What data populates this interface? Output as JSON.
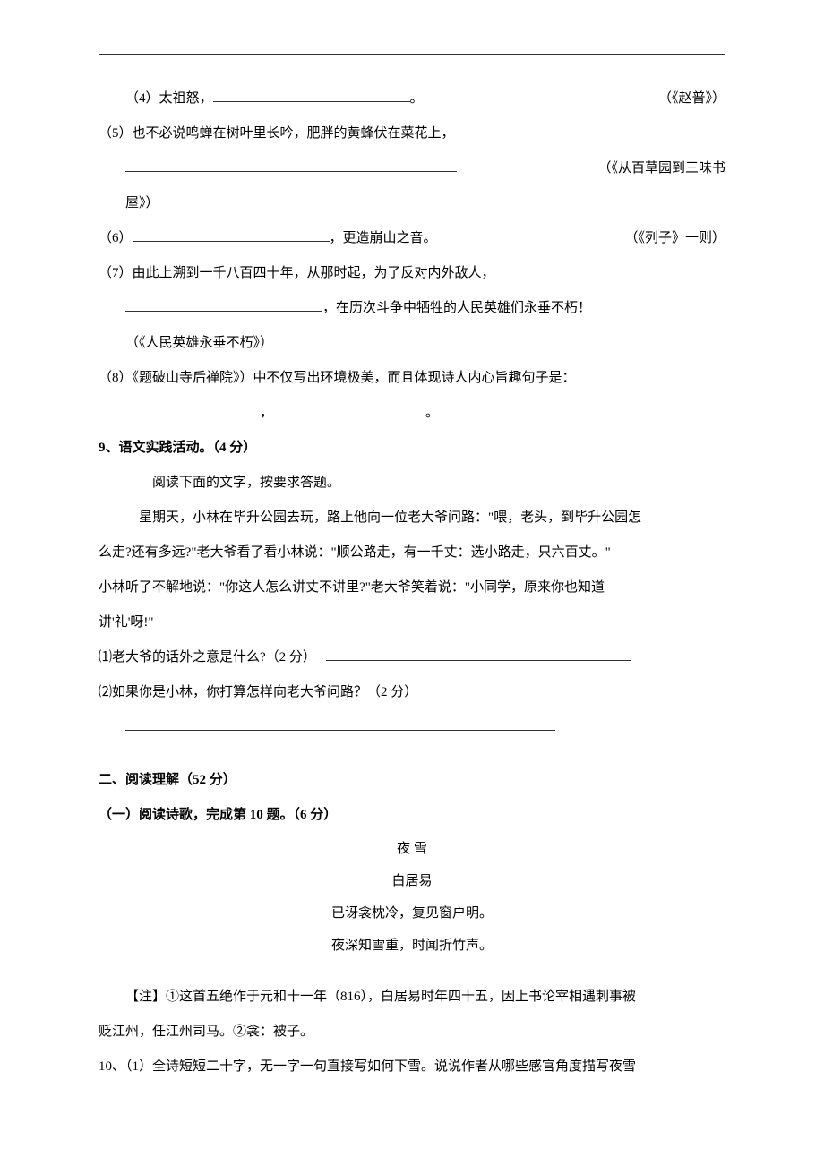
{
  "top_line": "",
  "items": {
    "q4": {
      "prefix": "（4）太祖怒，",
      "ref": "（《赵普》）"
    },
    "q5": {
      "text": "（5）也不必说鸣蝉在树叶里长吟，肥胖的黄蜂伏在菜花上，",
      "ref_prefix": "（《从百草园到三味书",
      "ref_suffix": "屋》）"
    },
    "q6": {
      "prefix": "（6）",
      "suffix": "，更造崩山之音。",
      "ref": "（《列子》一则）"
    },
    "q7": {
      "text": "（7）由此上溯到一千八百四十年，从那时起，为了反对内外敌人，",
      "tail": "，在历次斗争中牺牲的人民英雄们永垂不朽！",
      "ref": "（《人民英雄永垂不朽》）"
    },
    "q8": {
      "text": "（8）《题破山寺后禅院》）中不仅写出环境极美，而且体现诗人内心旨趣句子是：",
      "comma": "，",
      "period": "。"
    }
  },
  "q9": {
    "title": "9、语文实践活动。（4 分）",
    "intro": "阅读下面的文字，按要求答题。",
    "body1": "星期天，小林在毕升公园去玩，路上他向一位老大爷问路：\"喂，老头，到毕升公园怎",
    "body2": "么走?还有多远?\"老大爷看了看小林说：\"顺公路走，有一千丈：选小路走，只六百丈。\"",
    "body3": "小林听了不解地说：\"你这人怎么讲丈不讲里?\"老大爷笑着说：\"小同学，原来你也知道",
    "body4": "讲'礼'呀!\"",
    "sub1": "⑴老大爷的话外之意是什么?（2 分）",
    "sub2": "⑵如果你是小林，你打算怎样向老大爷问路？（2 分）"
  },
  "section2": {
    "title": "二、阅读理解（52 分）",
    "sub": "（一）阅读诗歌，完成第 10 题。（6 分）",
    "poem_title": "夜 雪",
    "poem_author": "白居易",
    "poem_l1": "已讶衾枕冷，复见窗户明。",
    "poem_l2": "夜深知雪重，时闻折竹声。",
    "note": "【注】①这首五绝作于元和十一年（816），白居易时年四十五，因上书论宰相遇刺事被",
    "note2": "贬江州，任江州司马。②衾：被子。",
    "q10": "10、（1）全诗短短二十字，无一字一句直接写如何下雪。说说作者从哪些感官角度描写夜雪"
  },
  "colors": {
    "text": "#000000",
    "background": "#ffffff",
    "line": "#333333"
  },
  "typography": {
    "font_family": "SimSun",
    "font_size_pt": 11,
    "line_height": 2.6
  }
}
